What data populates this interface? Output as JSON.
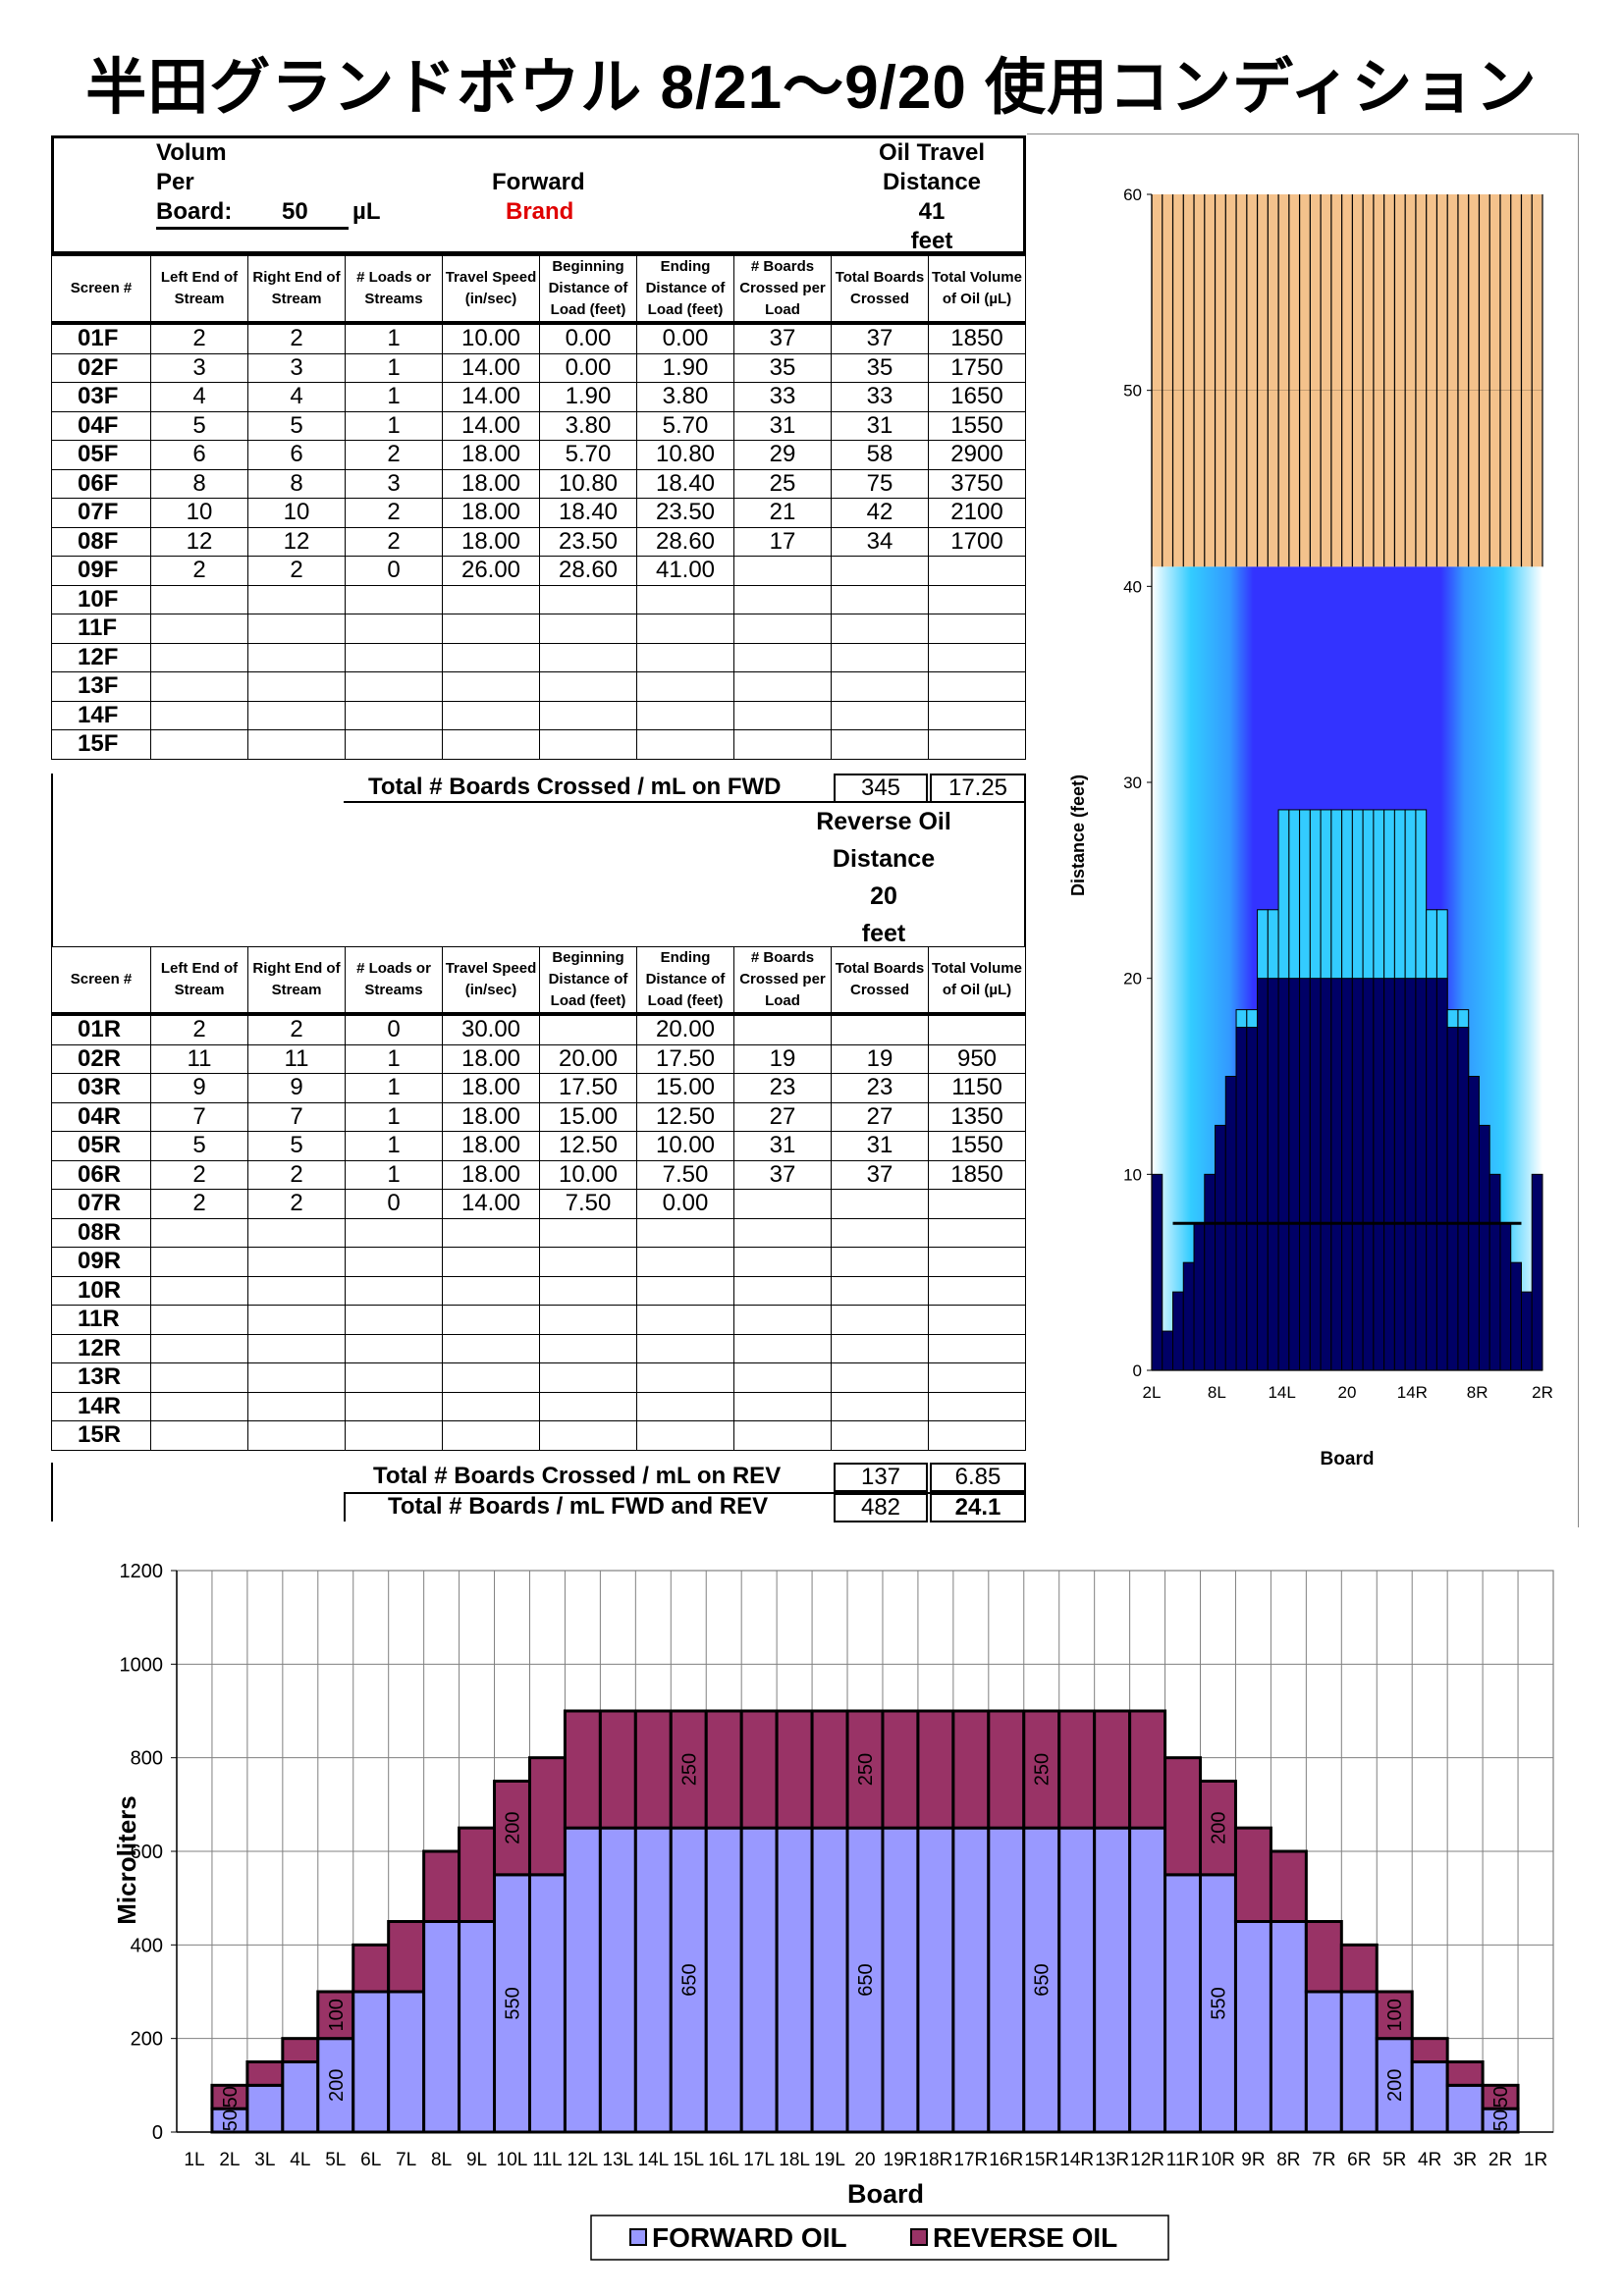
{
  "title": "半田グランドボウル  8/21～9/20  使用コンディション",
  "header": {
    "volume_label_1": "Volum",
    "volume_label_2": "Per",
    "volume_label_3": "Board:",
    "volume_value": "50",
    "volume_unit": "µL",
    "forward_label": "Forward",
    "brand_label": "Brand",
    "oil_travel_label_1": "Oil Travel",
    "oil_travel_label_2": "Distance",
    "oil_travel_value": "41",
    "oil_travel_unit": "feet"
  },
  "columns": [
    "Screen #",
    "Left End of Stream",
    "Right End of Stream",
    "# Loads or Streams",
    "Travel Speed (in/sec)",
    "Beginning Distance of Load (feet)",
    "Ending Distance of Load (feet)",
    "# Boards Crossed per Load",
    "Total Boards Crossed",
    "Total Volume of Oil (µL)"
  ],
  "forward_rows": [
    [
      "01F",
      "2",
      "2",
      "1",
      "10.00",
      "0.00",
      "0.00",
      "37",
      "37",
      "1850"
    ],
    [
      "02F",
      "3",
      "3",
      "1",
      "14.00",
      "0.00",
      "1.90",
      "35",
      "35",
      "1750"
    ],
    [
      "03F",
      "4",
      "4",
      "1",
      "14.00",
      "1.90",
      "3.80",
      "33",
      "33",
      "1650"
    ],
    [
      "04F",
      "5",
      "5",
      "1",
      "14.00",
      "3.80",
      "5.70",
      "31",
      "31",
      "1550"
    ],
    [
      "05F",
      "6",
      "6",
      "2",
      "18.00",
      "5.70",
      "10.80",
      "29",
      "58",
      "2900"
    ],
    [
      "06F",
      "8",
      "8",
      "3",
      "18.00",
      "10.80",
      "18.40",
      "25",
      "75",
      "3750"
    ],
    [
      "07F",
      "10",
      "10",
      "2",
      "18.00",
      "18.40",
      "23.50",
      "21",
      "42",
      "2100"
    ],
    [
      "08F",
      "12",
      "12",
      "2",
      "18.00",
      "23.50",
      "28.60",
      "17",
      "34",
      "1700"
    ],
    [
      "09F",
      "2",
      "2",
      "0",
      "26.00",
      "28.60",
      "41.00",
      "",
      "",
      ""
    ],
    [
      "10F",
      "",
      "",
      "",
      "",
      "",
      "",
      "",
      "",
      ""
    ],
    [
      "11F",
      "",
      "",
      "",
      "",
      "",
      "",
      "",
      "",
      ""
    ],
    [
      "12F",
      "",
      "",
      "",
      "",
      "",
      "",
      "",
      "",
      ""
    ],
    [
      "13F",
      "",
      "",
      "",
      "",
      "",
      "",
      "",
      "",
      ""
    ],
    [
      "14F",
      "",
      "",
      "",
      "",
      "",
      "",
      "",
      "",
      ""
    ],
    [
      "15F",
      "",
      "",
      "",
      "",
      "",
      "",
      "",
      "",
      ""
    ]
  ],
  "forward_total_label": "Total # Boards Crossed / mL on FWD",
  "forward_total_boards": "345",
  "forward_total_ml": "17.25",
  "reverse_header": {
    "label_1": "Reverse Oil",
    "label_2": "Distance",
    "value": "20",
    "unit": "feet"
  },
  "reverse_rows": [
    [
      "01R",
      "2",
      "2",
      "0",
      "30.00",
      "",
      "20.00",
      "",
      "",
      ""
    ],
    [
      "02R",
      "11",
      "11",
      "1",
      "18.00",
      "20.00",
      "17.50",
      "19",
      "19",
      "950"
    ],
    [
      "03R",
      "9",
      "9",
      "1",
      "18.00",
      "17.50",
      "15.00",
      "23",
      "23",
      "1150"
    ],
    [
      "04R",
      "7",
      "7",
      "1",
      "18.00",
      "15.00",
      "12.50",
      "27",
      "27",
      "1350"
    ],
    [
      "05R",
      "5",
      "5",
      "1",
      "18.00",
      "12.50",
      "10.00",
      "31",
      "31",
      "1550"
    ],
    [
      "06R",
      "2",
      "2",
      "1",
      "18.00",
      "10.00",
      "7.50",
      "37",
      "37",
      "1850"
    ],
    [
      "07R",
      "2",
      "2",
      "0",
      "14.00",
      "7.50",
      "0.00",
      "",
      "",
      ""
    ],
    [
      "08R",
      "",
      "",
      "",
      "",
      "",
      "",
      "",
      "",
      ""
    ],
    [
      "09R",
      "",
      "",
      "",
      "",
      "",
      "",
      "",
      "",
      ""
    ],
    [
      "10R",
      "",
      "",
      "",
      "",
      "",
      "",
      "",
      "",
      ""
    ],
    [
      "11R",
      "",
      "",
      "",
      "",
      "",
      "",
      "",
      "",
      ""
    ],
    [
      "12R",
      "",
      "",
      "",
      "",
      "",
      "",
      "",
      "",
      ""
    ],
    [
      "13R",
      "",
      "",
      "",
      "",
      "",
      "",
      "",
      "",
      ""
    ],
    [
      "14R",
      "",
      "",
      "",
      "",
      "",
      "",
      "",
      "",
      ""
    ],
    [
      "15R",
      "",
      "",
      "",
      "",
      "",
      "",
      "",
      "",
      ""
    ]
  ],
  "reverse_total_label": "Total # Boards Crossed / mL on REV",
  "reverse_total_boards": "137",
  "reverse_total_ml": "6.85",
  "grand_total_label": "Total # Boards / mL FWD and REV",
  "grand_total_boards": "482",
  "grand_total_ml": "24.1",
  "colors": {
    "forward_oil": "#9999ff",
    "reverse_oil": "#993366",
    "lane_wood": "#f4c28c",
    "oil_dark": "#000066",
    "oil_cyan": "#33ccff",
    "oil_blue": "#3333ff"
  },
  "chart_data": [
    {
      "type": "heatmap",
      "title": "",
      "xlabel": "Board",
      "ylabel": "Distance (feet)",
      "ylim": [
        0,
        60
      ],
      "yticks": [
        "0",
        "10",
        "20",
        "30",
        "40",
        "50",
        "60"
      ],
      "xticks": [
        "2L",
        "8L",
        "14L",
        "20",
        "14R",
        "8R",
        "2R"
      ],
      "boards": [
        "2L",
        "3L",
        "4L",
        "5L",
        "6L",
        "7L",
        "8L",
        "9L",
        "10L",
        "11L",
        "12L",
        "13L",
        "14L",
        "15L",
        "16L",
        "17L",
        "18L",
        "19L",
        "20",
        "19R",
        "18R",
        "17R",
        "16R",
        "15R",
        "14R",
        "13R",
        "12R",
        "11R",
        "10R",
        "9R",
        "8R",
        "7R",
        "6R",
        "5R",
        "4R",
        "3R",
        "2R"
      ],
      "dark_oil_end": [
        10,
        2,
        4,
        5.5,
        7.5,
        10,
        12.5,
        15,
        17.5,
        17.5,
        20,
        20,
        20,
        20,
        20,
        20,
        20,
        20,
        20,
        20,
        20,
        20,
        20,
        20,
        20,
        20,
        20,
        20,
        17.5,
        17.5,
        15,
        12.5,
        10,
        7.5,
        5.5,
        4,
        10
      ],
      "cyan_oil_end": [
        0,
        0,
        0,
        0,
        0,
        0,
        0,
        0,
        18.4,
        18.4,
        23.5,
        23.5,
        28.6,
        28.6,
        28.6,
        28.6,
        28.6,
        28.6,
        28.6,
        28.6,
        28.6,
        28.6,
        28.6,
        28.6,
        28.6,
        28.6,
        23.5,
        23.5,
        18.4,
        18.4,
        0,
        0,
        0,
        0,
        0,
        0,
        0
      ],
      "oil_pattern_length": 41,
      "lane_length": 60
    },
    {
      "type": "bar",
      "stacked": true,
      "title": "",
      "xlabel": "Board",
      "ylabel": "Microliters",
      "ylim": [
        0,
        1200
      ],
      "yticks": [
        "0",
        "200",
        "400",
        "600",
        "800",
        "1000",
        "1200"
      ],
      "categories": [
        "1L",
        "2L",
        "3L",
        "4L",
        "5L",
        "6L",
        "7L",
        "8L",
        "9L",
        "10L",
        "11L",
        "12L",
        "13L",
        "14L",
        "15L",
        "16L",
        "17L",
        "18L",
        "19L",
        "20",
        "19R",
        "18R",
        "17R",
        "16R",
        "15R",
        "14R",
        "13R",
        "12R",
        "11R",
        "10R",
        "9R",
        "8R",
        "7R",
        "6R",
        "5R",
        "4R",
        "3R",
        "2R",
        "1R"
      ],
      "series": [
        {
          "name": "FORWARD OIL",
          "values": [
            0,
            50,
            100,
            150,
            200,
            300,
            300,
            450,
            450,
            550,
            550,
            650,
            650,
            650,
            650,
            650,
            650,
            650,
            650,
            650,
            650,
            650,
            650,
            650,
            650,
            650,
            650,
            650,
            550,
            550,
            450,
            450,
            300,
            300,
            200,
            150,
            100,
            50,
            0
          ]
        },
        {
          "name": "REVERSE OIL",
          "values": [
            0,
            50,
            50,
            50,
            100,
            100,
            150,
            150,
            200,
            200,
            250,
            250,
            250,
            250,
            250,
            250,
            250,
            250,
            250,
            250,
            250,
            250,
            250,
            250,
            250,
            250,
            250,
            250,
            250,
            200,
            200,
            150,
            150,
            100,
            100,
            50,
            50,
            50,
            0
          ]
        }
      ],
      "data_labels": [
        {
          "category": "2L",
          "series": "FORWARD OIL",
          "text": "50"
        },
        {
          "category": "2L",
          "series": "REVERSE OIL",
          "text": "50"
        },
        {
          "category": "5L",
          "series": "FORWARD OIL",
          "text": "200"
        },
        {
          "category": "5L",
          "series": "REVERSE OIL",
          "text": "100"
        },
        {
          "category": "10L",
          "series": "FORWARD OIL",
          "text": "550"
        },
        {
          "category": "10L",
          "series": "REVERSE OIL",
          "text": "200"
        },
        {
          "category": "15L",
          "series": "FORWARD OIL",
          "text": "650"
        },
        {
          "category": "15L",
          "series": "REVERSE OIL",
          "text": "250"
        },
        {
          "category": "20",
          "series": "FORWARD OIL",
          "text": "650"
        },
        {
          "category": "20",
          "series": "REVERSE OIL",
          "text": "250"
        },
        {
          "category": "15R",
          "series": "FORWARD OIL",
          "text": "650"
        },
        {
          "category": "15R",
          "series": "REVERSE OIL",
          "text": "250"
        },
        {
          "category": "10R",
          "series": "FORWARD OIL",
          "text": "550"
        },
        {
          "category": "10R",
          "series": "REVERSE OIL",
          "text": "200"
        },
        {
          "category": "5R",
          "series": "FORWARD OIL",
          "text": "200"
        },
        {
          "category": "5R",
          "series": "REVERSE OIL",
          "text": "100"
        },
        {
          "category": "2R",
          "series": "FORWARD OIL",
          "text": "50"
        },
        {
          "category": "2R",
          "series": "REVERSE OIL",
          "text": "50"
        }
      ],
      "legend": "bottom",
      "grid": true
    }
  ]
}
